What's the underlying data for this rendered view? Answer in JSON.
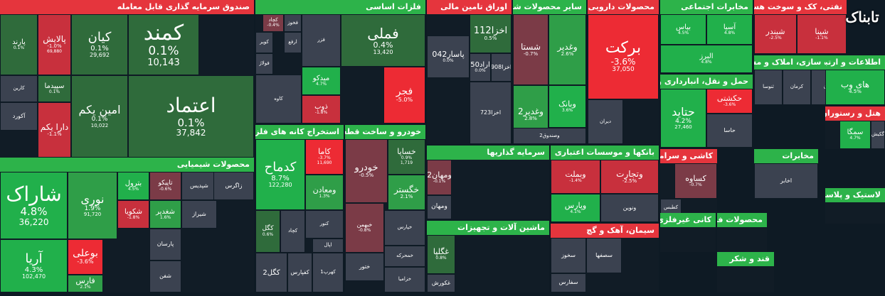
{
  "watermark": "تابناک",
  "colors": {
    "green_strong": "#21b04b",
    "green": "#2f9e48",
    "green_dark": "#2f6b3b",
    "neutral": "#3b4250",
    "red_dark": "#7b3b47",
    "red": "#c8303d",
    "red_strong": "#ed2b34",
    "header_green": "#2db34a",
    "header_red": "#e5353d"
  },
  "sectors": [
    {
      "name": "صندوق سرمایه گذاری قابل معامله",
      "tiles": [
        {
          "name": "کمند",
          "pct": "0.1%",
          "vol": "10,143"
        },
        {
          "name": "کیان",
          "pct": "0.1%",
          "vol": "29,692"
        },
        {
          "name": "پالایش",
          "pct": "-1.0%",
          "vol": "69,880"
        },
        {
          "name": "پارند",
          "pct": "0.1%",
          "vol": ""
        },
        {
          "name": "اعتماد",
          "pct": "0.1%",
          "vol": "37,842"
        },
        {
          "name": "امین یکم",
          "pct": "0.1%",
          "vol": "10,022"
        },
        {
          "name": "سپیدما",
          "pct": "0.1%",
          "vol": ""
        },
        {
          "name": "دارا یکم",
          "pct": "-1.1%",
          "vol": ""
        },
        {
          "name": "آکورد",
          "pct": "",
          "vol": ""
        },
        {
          "name": "کارین",
          "pct": "",
          "vol": ""
        }
      ]
    },
    {
      "name": "فلزات اساسی",
      "tiles": [
        {
          "name": "فملی",
          "pct": "0.4%",
          "vol": "13,420"
        },
        {
          "name": "فجر",
          "pct": "-5.0%",
          "vol": ""
        },
        {
          "name": "میدکو",
          "pct": "4.7%",
          "vol": ""
        },
        {
          "name": "ذوب",
          "pct": "-1.8%",
          "vol": ""
        },
        {
          "name": "فخوز",
          "pct": "",
          "vol": ""
        },
        {
          "name": "کچاد",
          "pct": "-0.4%",
          "vol": ""
        },
        {
          "name": "کویر",
          "pct": "",
          "vol": ""
        },
        {
          "name": "فولاژ",
          "pct": "",
          "vol": ""
        },
        {
          "name": "ارفع",
          "pct": "",
          "vol": ""
        },
        {
          "name": "فزر",
          "pct": "",
          "vol": ""
        },
        {
          "name": "کاوه",
          "pct": "",
          "vol": ""
        }
      ]
    },
    {
      "name": "اوراق تامین مالی",
      "tiles": [
        {
          "name": "اخزا112",
          "pct": "0.5%",
          "vol": ""
        },
        {
          "name": "پاسار042",
          "pct": "0.0%",
          "vol": ""
        },
        {
          "name": "اراد50",
          "pct": "0.0%",
          "vol": ""
        },
        {
          "name": "اخزا908",
          "pct": "",
          "vol": ""
        },
        {
          "name": "اخزا723",
          "pct": "",
          "vol": ""
        }
      ]
    },
    {
      "name": "سایر محصولات شیمیایی",
      "tiles": [
        {
          "name": "شستا",
          "pct": "-0.7%",
          "vol": ""
        },
        {
          "name": "وغدیر",
          "pct": "2.6%",
          "vol": ""
        },
        {
          "name": "وغدیر2",
          "pct": "2.8%",
          "vol": ""
        },
        {
          "name": "وبانک",
          "pct": "3.6%",
          "vol": ""
        },
        {
          "name": "وصندوق2",
          "pct": "",
          "vol": ""
        }
      ]
    },
    {
      "name": "محصولات دارویی",
      "tiles": [
        {
          "name": "برکت",
          "pct": "-3.6%",
          "vol": "37,050"
        },
        {
          "name": "دیران",
          "pct": "",
          "vol": ""
        }
      ]
    },
    {
      "name": "مخابرات اجتماعی",
      "tiles": [
        {
          "name": "بپاس",
          "pct": "4.5%",
          "vol": ""
        },
        {
          "name": "آسیا",
          "pct": "4.8%",
          "vol": ""
        },
        {
          "name": "البرز",
          "pct": "4.8%",
          "vol": ""
        }
      ]
    },
    {
      "name": "نفتی، کک و سوخت هسته ای",
      "tiles": [
        {
          "name": "شپنا",
          "pct": "-1.1%",
          "vol": ""
        },
        {
          "name": "شبندر",
          "pct": "-2.5%",
          "vol": ""
        }
      ]
    },
    {
      "name": "محصولات شیمیایی",
      "tiles": [
        {
          "name": "شاراک",
          "pct": "4.8%",
          "vol": "36,220"
        },
        {
          "name": "نوری",
          "pct": "1.9%",
          "vol": "91,720"
        },
        {
          "name": "بترول",
          "pct": "4.5%",
          "vol": ""
        },
        {
          "name": "تاپیکو",
          "pct": "-0.6%",
          "vol": ""
        },
        {
          "name": "شکویا",
          "pct": "-1.8%",
          "vol": ""
        },
        {
          "name": "شغدیر",
          "pct": "1.6%",
          "vol": ""
        },
        {
          "name": "بوعلی",
          "pct": "-3.6%",
          "vol": ""
        },
        {
          "name": "آریا",
          "pct": "4.3%",
          "vol": "102,470"
        },
        {
          "name": "فارس",
          "pct": "2.1%",
          "vol": ""
        },
        {
          "name": "شپدیس",
          "pct": "",
          "vol": ""
        },
        {
          "name": "زاگرس",
          "pct": "",
          "vol": ""
        },
        {
          "name": "شیراز",
          "pct": "",
          "vol": ""
        },
        {
          "name": "پارسان",
          "pct": "",
          "vol": ""
        },
        {
          "name": "شفن",
          "pct": "",
          "vol": ""
        }
      ]
    },
    {
      "name": "استخراج کانه های فلزی",
      "tiles": [
        {
          "name": "کدماح",
          "pct": "8.7%",
          "vol": "122,280"
        },
        {
          "name": "کاما",
          "pct": "-3.7%",
          "vol": "11,690"
        },
        {
          "name": "ومعادن",
          "pct": "1.3%",
          "vol": ""
        },
        {
          "name": "کگل",
          "pct": "0.6%",
          "vol": ""
        },
        {
          "name": "کچاد",
          "pct": "",
          "vol": ""
        },
        {
          "name": "کنور",
          "pct": "",
          "vol": ""
        },
        {
          "name": "کگل2",
          "pct": "",
          "vol": ""
        },
        {
          "name": "کفپارس",
          "pct": "",
          "vol": ""
        },
        {
          "name": "کهرپ1",
          "pct": "",
          "vol": ""
        },
        {
          "name": "اپال",
          "pct": "",
          "vol": ""
        }
      ]
    },
    {
      "name": "خودرو و ساخت قطعات",
      "tiles": [
        {
          "name": "خساپا",
          "pct": "0.9%",
          "vol": "1,719"
        },
        {
          "name": "خودرو",
          "pct": "-0.5%",
          "vol": ""
        },
        {
          "name": "خگستر",
          "pct": "2.1%",
          "vol": ""
        },
        {
          "name": "خبهمن",
          "pct": "-0.8%",
          "vol": ""
        },
        {
          "name": "ختور",
          "pct": "",
          "vol": ""
        },
        {
          "name": "خپارس",
          "pct": "",
          "vol": ""
        },
        {
          "name": "خمحرکه",
          "pct": "",
          "vol": ""
        },
        {
          "name": "خزامیا",
          "pct": "",
          "vol": ""
        }
      ]
    },
    {
      "name": "سرمایه گذاریها",
      "tiles": [
        {
          "name": "ومهان2",
          "pct": "-0.1%",
          "vol": ""
        },
        {
          "name": "ومهان",
          "pct": "",
          "vol": ""
        }
      ]
    },
    {
      "name": "بانکها و موسسات اعتباری",
      "tiles": [
        {
          "name": "وبملت",
          "pct": "-1.4%",
          "vol": ""
        },
        {
          "name": "وتجارت",
          "pct": "-2.5%",
          "vol": ""
        },
        {
          "name": "وپارس",
          "pct": "4.1%",
          "vol": ""
        },
        {
          "name": "ونوین",
          "pct": "",
          "vol": ""
        }
      ]
    },
    {
      "name": "کاشی و سرامیک",
      "tiles": [
        {
          "name": "کساوه",
          "pct": "-0.7%",
          "vol": ""
        },
        {
          "name": "کطبس",
          "pct": "",
          "vol": ""
        }
      ]
    },
    {
      "name": "فعالیتهای وابسته",
      "tiles": [
        {
          "name": "تنوین",
          "pct": "0.7%",
          "vol": ""
        }
      ]
    },
    {
      "name": "مخابرات",
      "tiles": [
        {
          "name": "اخابر",
          "pct": "",
          "vol": ""
        }
      ]
    },
    {
      "name": "حمل و نقل، انبارداری و ارتباطات",
      "tiles": [
        {
          "name": "حتاید",
          "pct": "4.2%",
          "vol": "27,460"
        },
        {
          "name": "حکشتی",
          "pct": "-3.6%",
          "vol": ""
        },
        {
          "name": "حاسا",
          "pct": "",
          "vol": ""
        }
      ]
    },
    {
      "name": "انبوه سازی، املاک و مستغلات",
      "tiles": [
        {
          "name": "ثنوسا",
          "pct": "",
          "vol": ""
        },
        {
          "name": "ثاوان",
          "pct": "",
          "vol": ""
        },
        {
          "name": "کرمان",
          "pct": "",
          "vol": ""
        }
      ]
    },
    {
      "name": "اطلاعات و ارتباطات",
      "tiles": [
        {
          "name": "های وب",
          "pct": "4.5%",
          "vol": ""
        }
      ]
    },
    {
      "name": "هتل و رستوران",
      "tiles": [
        {
          "name": "سمگا",
          "pct": "4.7%",
          "vol": ""
        },
        {
          "name": "گکیش",
          "pct": "",
          "vol": ""
        }
      ]
    },
    {
      "name": "سیمان، آهک و گچ",
      "tiles": [
        {
          "name": "سخوز",
          "pct": "",
          "vol": ""
        },
        {
          "name": "سفارس",
          "pct": "",
          "vol": ""
        },
        {
          "name": "سصفها",
          "pct": "",
          "vol": ""
        }
      ]
    },
    {
      "name": "لاستیک و پلاستیک",
      "tiles": []
    },
    {
      "name": "ماشین آلات و تجهیزات",
      "tiles": [
        {
          "name": "غگلپا",
          "pct": "0.8%",
          "vol": ""
        },
        {
          "name": "غکورش",
          "pct": "",
          "vol": ""
        }
      ]
    },
    {
      "name": "قند و شکر",
      "tiles": []
    },
    {
      "name": "محصولات فلزی",
      "tiles": []
    },
    {
      "name": "کانی غیرفلزی",
      "tiles": []
    }
  ]
}
